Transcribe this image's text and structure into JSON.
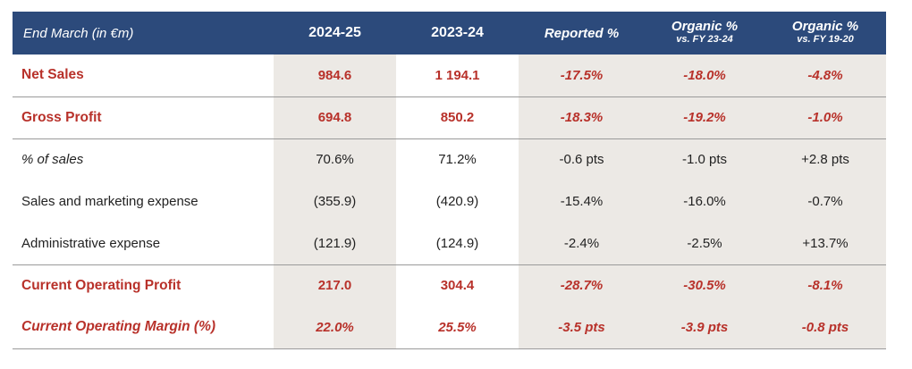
{
  "header": {
    "label": "End March (in €m)",
    "col1": "2024-25",
    "col2": "2023-24",
    "col3": "Reported %",
    "col4_line1": "Organic %",
    "col4_line2": "vs. FY 23-24",
    "col5_line1": "Organic %",
    "col5_line2": "vs. FY 19-20"
  },
  "rows": [
    {
      "label": "Net Sales",
      "v1": "984.6",
      "v2": "1 194.1",
      "v3": "-17.5%",
      "v4": "-18.0%",
      "v5": "-4.8%"
    },
    {
      "label": "Gross Profit",
      "v1": "694.8",
      "v2": "850.2",
      "v3": "-18.3%",
      "v4": "-19.2%",
      "v5": "-1.0%"
    },
    {
      "label": "% of sales",
      "v1": "70.6%",
      "v2": "71.2%",
      "v3": "-0.6 pts",
      "v4": "-1.0 pts",
      "v5": "+2.8 pts"
    },
    {
      "label": "Sales and marketing expense",
      "v1": "(355.9)",
      "v2": "(420.9)",
      "v3": "-15.4%",
      "v4": "-16.0%",
      "v5": "-0.7%"
    },
    {
      "label": "Administrative expense",
      "v1": "(121.9)",
      "v2": "(124.9)",
      "v3": "-2.4%",
      "v4": "-2.5%",
      "v5": "+13.7%"
    },
    {
      "label": "Current Operating Profit",
      "v1": "217.0",
      "v2": "304.4",
      "v3": "-28.7%",
      "v4": "-30.5%",
      "v5": "-8.1%"
    },
    {
      "label": "Current Operating Margin (%)",
      "v1": "22.0%",
      "v2": "25.5%",
      "v3": "-3.5 pts",
      "v4": "-3.9 pts",
      "v5": "-0.8 pts"
    }
  ],
  "colors": {
    "header_bg": "#2c4a7b",
    "highlight_text": "#b8312a",
    "shade": "#ece9e5"
  }
}
